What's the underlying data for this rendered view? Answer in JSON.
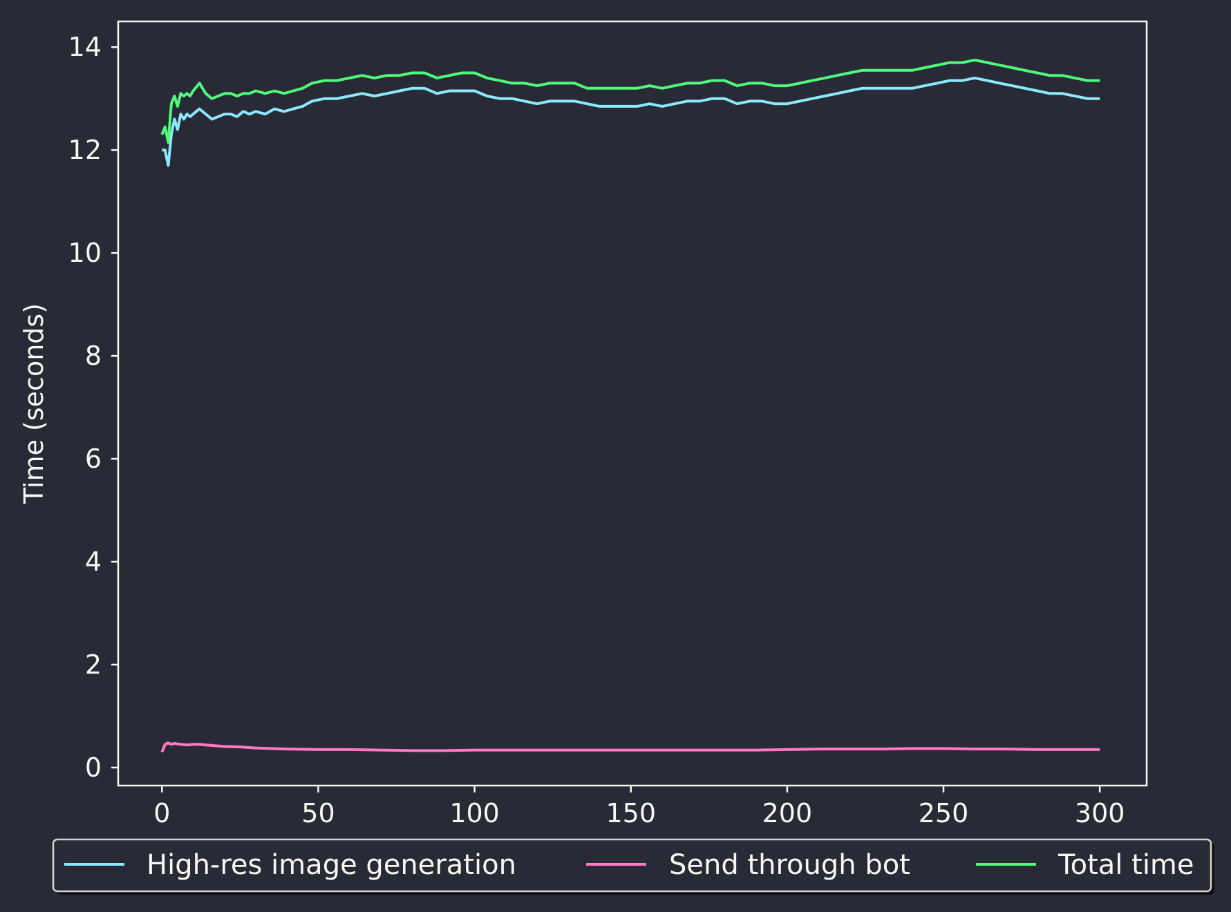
{
  "chart_data": {
    "type": "line",
    "title": "",
    "xlabel": "",
    "ylabel": "Time (seconds)",
    "xlim": [
      -14,
      315
    ],
    "ylim": [
      -0.35,
      14.5
    ],
    "xticks": [
      0,
      50,
      100,
      150,
      200,
      250,
      300
    ],
    "yticks": [
      0,
      2,
      4,
      6,
      8,
      10,
      12,
      14
    ],
    "grid": false,
    "legend_position": "below the plot, centered",
    "colors": {
      "background": "#282a36",
      "axes": "#f8f8f2"
    },
    "series": [
      {
        "name": "High-res image generation",
        "color": "#8be9fd",
        "x": [
          0,
          1,
          2,
          3,
          4,
          5,
          6,
          7,
          8,
          9,
          10,
          12,
          14,
          16,
          18,
          20,
          22,
          24,
          26,
          28,
          30,
          33,
          36,
          39,
          42,
          45,
          48,
          52,
          56,
          60,
          64,
          68,
          72,
          76,
          80,
          84,
          88,
          92,
          96,
          100,
          104,
          108,
          112,
          116,
          120,
          124,
          128,
          132,
          136,
          140,
          144,
          148,
          152,
          156,
          160,
          164,
          168,
          172,
          176,
          180,
          184,
          188,
          192,
          196,
          200,
          204,
          208,
          212,
          216,
          220,
          224,
          228,
          232,
          236,
          240,
          244,
          248,
          252,
          256,
          260,
          264,
          268,
          272,
          276,
          280,
          284,
          288,
          292,
          296,
          300
        ],
        "y": [
          12.0,
          12.0,
          11.7,
          12.3,
          12.6,
          12.4,
          12.7,
          12.6,
          12.7,
          12.65,
          12.7,
          12.8,
          12.7,
          12.6,
          12.65,
          12.7,
          12.7,
          12.65,
          12.75,
          12.7,
          12.75,
          12.7,
          12.8,
          12.75,
          12.8,
          12.85,
          12.95,
          13.0,
          13.0,
          13.05,
          13.1,
          13.05,
          13.1,
          13.15,
          13.2,
          13.2,
          13.1,
          13.15,
          13.15,
          13.15,
          13.05,
          13.0,
          13.0,
          12.95,
          12.9,
          12.95,
          12.95,
          12.95,
          12.9,
          12.85,
          12.85,
          12.85,
          12.85,
          12.9,
          12.85,
          12.9,
          12.95,
          12.95,
          13.0,
          13.0,
          12.9,
          12.95,
          12.95,
          12.9,
          12.9,
          12.95,
          13.0,
          13.05,
          13.1,
          13.15,
          13.2,
          13.2,
          13.2,
          13.2,
          13.2,
          13.25,
          13.3,
          13.35,
          13.35,
          13.4,
          13.35,
          13.3,
          13.25,
          13.2,
          13.15,
          13.1,
          13.1,
          13.05,
          13.0,
          13.0
        ]
      },
      {
        "name": "Send through bot",
        "color": "#ff79c6",
        "x": [
          0,
          1,
          2,
          3,
          4,
          5,
          6,
          8,
          10,
          12,
          14,
          16,
          18,
          20,
          25,
          30,
          40,
          50,
          60,
          70,
          80,
          90,
          100,
          110,
          120,
          130,
          140,
          150,
          160,
          170,
          180,
          190,
          200,
          210,
          220,
          230,
          240,
          250,
          260,
          270,
          280,
          290,
          300
        ],
        "y": [
          0.3,
          0.45,
          0.48,
          0.45,
          0.47,
          0.46,
          0.45,
          0.44,
          0.45,
          0.45,
          0.44,
          0.43,
          0.42,
          0.41,
          0.4,
          0.38,
          0.36,
          0.35,
          0.35,
          0.34,
          0.33,
          0.33,
          0.34,
          0.34,
          0.34,
          0.34,
          0.34,
          0.34,
          0.34,
          0.34,
          0.34,
          0.34,
          0.35,
          0.36,
          0.36,
          0.36,
          0.37,
          0.37,
          0.36,
          0.36,
          0.35,
          0.35,
          0.35
        ]
      },
      {
        "name": "Total time",
        "color": "#50fa7b",
        "x": [
          0,
          1,
          2,
          3,
          4,
          5,
          6,
          7,
          8,
          9,
          10,
          12,
          14,
          16,
          18,
          20,
          22,
          24,
          26,
          28,
          30,
          33,
          36,
          39,
          42,
          45,
          48,
          52,
          56,
          60,
          64,
          68,
          72,
          76,
          80,
          84,
          88,
          92,
          96,
          100,
          104,
          108,
          112,
          116,
          120,
          124,
          128,
          132,
          136,
          140,
          144,
          148,
          152,
          156,
          160,
          164,
          168,
          172,
          176,
          180,
          184,
          188,
          192,
          196,
          200,
          204,
          208,
          212,
          216,
          220,
          224,
          228,
          232,
          236,
          240,
          244,
          248,
          252,
          256,
          260,
          264,
          268,
          272,
          276,
          280,
          284,
          288,
          292,
          296,
          300
        ],
        "y": [
          12.3,
          12.45,
          12.15,
          12.9,
          13.05,
          12.85,
          13.1,
          13.05,
          13.1,
          13.05,
          13.15,
          13.3,
          13.1,
          13.0,
          13.05,
          13.1,
          13.1,
          13.05,
          13.1,
          13.1,
          13.15,
          13.1,
          13.15,
          13.1,
          13.15,
          13.2,
          13.3,
          13.35,
          13.35,
          13.4,
          13.45,
          13.4,
          13.45,
          13.45,
          13.5,
          13.5,
          13.4,
          13.45,
          13.5,
          13.5,
          13.4,
          13.35,
          13.3,
          13.3,
          13.25,
          13.3,
          13.3,
          13.3,
          13.2,
          13.2,
          13.2,
          13.2,
          13.2,
          13.25,
          13.2,
          13.25,
          13.3,
          13.3,
          13.35,
          13.35,
          13.25,
          13.3,
          13.3,
          13.25,
          13.25,
          13.3,
          13.35,
          13.4,
          13.45,
          13.5,
          13.55,
          13.55,
          13.55,
          13.55,
          13.55,
          13.6,
          13.65,
          13.7,
          13.7,
          13.75,
          13.7,
          13.65,
          13.6,
          13.55,
          13.5,
          13.45,
          13.45,
          13.4,
          13.35,
          13.35
        ]
      }
    ]
  }
}
